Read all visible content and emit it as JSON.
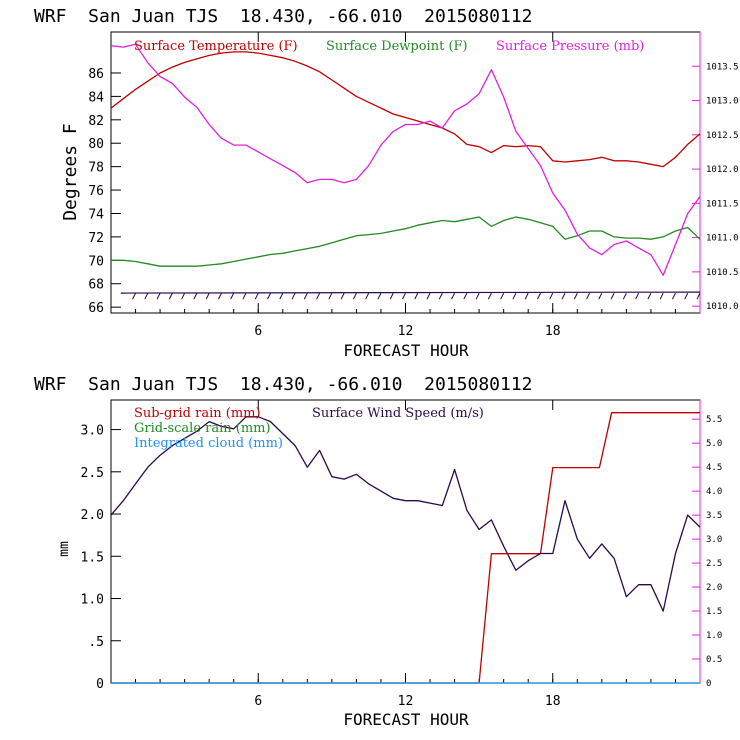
{
  "colors": {
    "temperature": "#c00000",
    "dewpoint": "#228b22",
    "pressure": "#e020e0",
    "subgrid": "#c00000",
    "gridscale": "#228b22",
    "cloud": "#1e90ff",
    "wind": "#2a0a4a",
    "rightaxis": "#e020e0"
  },
  "chart_data": [
    {
      "type": "line",
      "title": "WRF  San Juan TJS  18.430, -66.010  2015080112",
      "xlabel": "FORECAST HOUR",
      "ylabel": "Degrees F",
      "xlim": [
        0,
        24
      ],
      "ylim": [
        65.5,
        89.5
      ],
      "x_ticks": [
        "6",
        "12",
        "18"
      ],
      "y_ticks": [
        "66",
        "68",
        "70",
        "72",
        "74",
        "76",
        "78",
        "80",
        "82",
        "84",
        "86"
      ],
      "y2lim": [
        1009.9,
        1014.0
      ],
      "y2_ticks": [
        "1010.0",
        "1010.5",
        "1011.0",
        "1011.5",
        "1012.0",
        "1012.5",
        "1013.0",
        "1013.5"
      ],
      "legend": [
        "Surface Temperature (F)",
        "Surface Dewpoint (F)",
        "Surface Pressure (mb)"
      ],
      "series": [
        {
          "name": "Surface Temperature (F)",
          "axis": "left",
          "x": [
            0,
            0.5,
            1,
            1.5,
            2,
            2.5,
            3,
            3.5,
            4,
            4.5,
            5,
            5.5,
            6,
            6.5,
            7,
            7.5,
            8,
            8.5,
            9,
            9.5,
            10,
            10.5,
            11,
            11.5,
            12,
            12.5,
            13,
            13.5,
            14,
            14.5,
            15,
            15.5,
            16,
            16.5,
            17,
            17.5,
            18,
            18.5,
            19,
            19.5,
            20,
            20.5,
            21,
            21.5,
            22,
            22.5,
            23,
            23.5,
            24
          ],
          "values": [
            83.0,
            83.8,
            84.6,
            85.3,
            86.0,
            86.5,
            86.9,
            87.2,
            87.5,
            87.7,
            87.8,
            87.8,
            87.7,
            87.5,
            87.3,
            87.0,
            86.6,
            86.1,
            85.4,
            84.7,
            84.0,
            83.5,
            83.0,
            82.5,
            82.2,
            81.9,
            81.6,
            81.3,
            80.8,
            79.9,
            79.7,
            79.2,
            79.8,
            79.7,
            79.8,
            79.7,
            78.5,
            78.4,
            78.5,
            78.6,
            78.8,
            78.5,
            78.5,
            78.4,
            78.2,
            78.0,
            78.8,
            79.9,
            80.8
          ]
        },
        {
          "name": "Surface Dewpoint (F)",
          "axis": "left",
          "x": [
            0,
            0.5,
            1,
            1.5,
            2,
            2.5,
            3,
            3.5,
            4,
            4.5,
            5,
            5.5,
            6,
            6.5,
            7,
            7.5,
            8,
            8.5,
            9,
            9.5,
            10,
            10.5,
            11,
            11.5,
            12,
            12.5,
            13,
            13.5,
            14,
            14.5,
            15,
            15.5,
            16,
            16.5,
            17,
            17.5,
            18,
            18.5,
            19,
            19.5,
            20,
            20.5,
            21,
            21.5,
            22,
            22.5,
            23,
            23.5,
            24
          ],
          "values": [
            70.0,
            70.0,
            69.9,
            69.7,
            69.5,
            69.5,
            69.5,
            69.5,
            69.6,
            69.7,
            69.9,
            70.1,
            70.3,
            70.5,
            70.6,
            70.8,
            71.0,
            71.2,
            71.5,
            71.8,
            72.1,
            72.2,
            72.3,
            72.5,
            72.7,
            73.0,
            73.2,
            73.4,
            73.3,
            73.5,
            73.7,
            72.9,
            73.4,
            73.7,
            73.5,
            73.2,
            72.9,
            71.8,
            72.1,
            72.5,
            72.5,
            72.0,
            71.9,
            71.9,
            71.8,
            72.0,
            72.5,
            72.8,
            71.8
          ]
        },
        {
          "name": "Surface Pressure (mb)",
          "axis": "right",
          "x": [
            0,
            0.5,
            1,
            1.5,
            2,
            2.5,
            3,
            3.5,
            4,
            4.5,
            5,
            5.5,
            6,
            6.5,
            7,
            7.5,
            8,
            8.5,
            9,
            9.5,
            10,
            10.5,
            11,
            11.5,
            12,
            12.5,
            13,
            13.5,
            14,
            14.5,
            15,
            15.5,
            16,
            16.5,
            17,
            17.5,
            18,
            18.5,
            19,
            19.5,
            20,
            20.5,
            21,
            21.5,
            22,
            22.5,
            23,
            23.5,
            24
          ],
          "values": [
            1013.8,
            1013.78,
            1013.82,
            1013.55,
            1013.35,
            1013.25,
            1013.05,
            1012.9,
            1012.65,
            1012.45,
            1012.35,
            1012.35,
            1012.25,
            1012.15,
            1012.05,
            1011.95,
            1011.8,
            1011.85,
            1011.85,
            1011.8,
            1011.85,
            1012.05,
            1012.35,
            1012.55,
            1012.65,
            1012.65,
            1012.7,
            1012.6,
            1012.85,
            1012.95,
            1013.1,
            1013.45,
            1013.05,
            1012.55,
            1012.3,
            1012.05,
            1011.65,
            1011.4,
            1011.05,
            1010.85,
            1010.75,
            1010.9,
            1010.95,
            1010.85,
            1010.75,
            1010.45,
            1010.9,
            1011.35,
            1011.6
          ]
        },
        {
          "name": "",
          "type": "wind-barbs",
          "axis": "left",
          "level": 67.2
        }
      ]
    },
    {
      "type": "line",
      "title": "WRF  San Juan TJS  18.430, -66.010  2015080112",
      "xlabel": "FORECAST HOUR",
      "ylabel": "mm",
      "xlim": [
        0,
        24
      ],
      "ylim": [
        0,
        3.35
      ],
      "x_ticks": [
        "6",
        "12",
        "18"
      ],
      "y_ticks": [
        "0",
        ".5",
        "1.0",
        "1.5",
        "2.0",
        "2.5",
        "3.0"
      ],
      "y2lim": [
        0,
        5.9
      ],
      "y2_ticks": [
        "0",
        "0.5",
        "1.0",
        "1.5",
        "2.0",
        "2.5",
        "3.0",
        "3.5",
        "4.0",
        "4.5",
        "5.0",
        "5.5"
      ],
      "legend": [
        "Sub-grid rain (mm)",
        "Grid-scale rain (mm)",
        "Integrated cloud (mm)",
        "Surface Wind Speed (m/s)"
      ],
      "series": [
        {
          "name": "Sub-grid rain (mm)",
          "axis": "left",
          "x": [
            0,
            15.0,
            15.5,
            17.5,
            18.0,
            19.9,
            20.4,
            24
          ],
          "values": [
            0,
            0,
            1.53,
            1.53,
            2.55,
            2.55,
            3.2,
            3.2
          ]
        },
        {
          "name": "Grid-scale rain (mm)",
          "axis": "left",
          "x": [
            0,
            24
          ],
          "values": [
            0,
            0
          ]
        },
        {
          "name": "Integrated cloud (mm)",
          "axis": "left",
          "x": [
            0,
            24
          ],
          "values": [
            0,
            0
          ]
        },
        {
          "name": "Surface Wind Speed (m/s)",
          "axis": "right",
          "x": [
            0,
            0.5,
            1,
            1.5,
            2,
            2.5,
            3,
            3.5,
            4,
            4.5,
            5,
            5.5,
            6,
            6.5,
            7,
            7.5,
            8,
            8.5,
            9,
            9.5,
            10,
            10.5,
            11,
            11.5,
            12,
            12.5,
            13,
            13.5,
            14,
            14.5,
            15,
            15.5,
            16,
            16.5,
            17,
            17.5,
            18,
            18.5,
            19,
            19.5,
            20,
            20.5,
            21,
            21.5,
            22,
            22.5,
            23,
            23.5,
            24
          ],
          "values": [
            3.5,
            3.8,
            4.15,
            4.5,
            4.75,
            4.95,
            5.1,
            5.25,
            5.45,
            5.35,
            5.3,
            5.55,
            5.55,
            5.45,
            5.2,
            4.95,
            4.5,
            4.85,
            4.3,
            4.25,
            4.35,
            4.15,
            4.0,
            3.85,
            3.8,
            3.8,
            3.75,
            3.7,
            4.45,
            3.6,
            3.2,
            3.4,
            2.85,
            2.35,
            2.55,
            2.7,
            2.7,
            3.8,
            3.0,
            2.6,
            2.9,
            2.6,
            1.8,
            2.05,
            2.05,
            1.5,
            2.7,
            3.5,
            3.25
          ]
        }
      ]
    }
  ]
}
